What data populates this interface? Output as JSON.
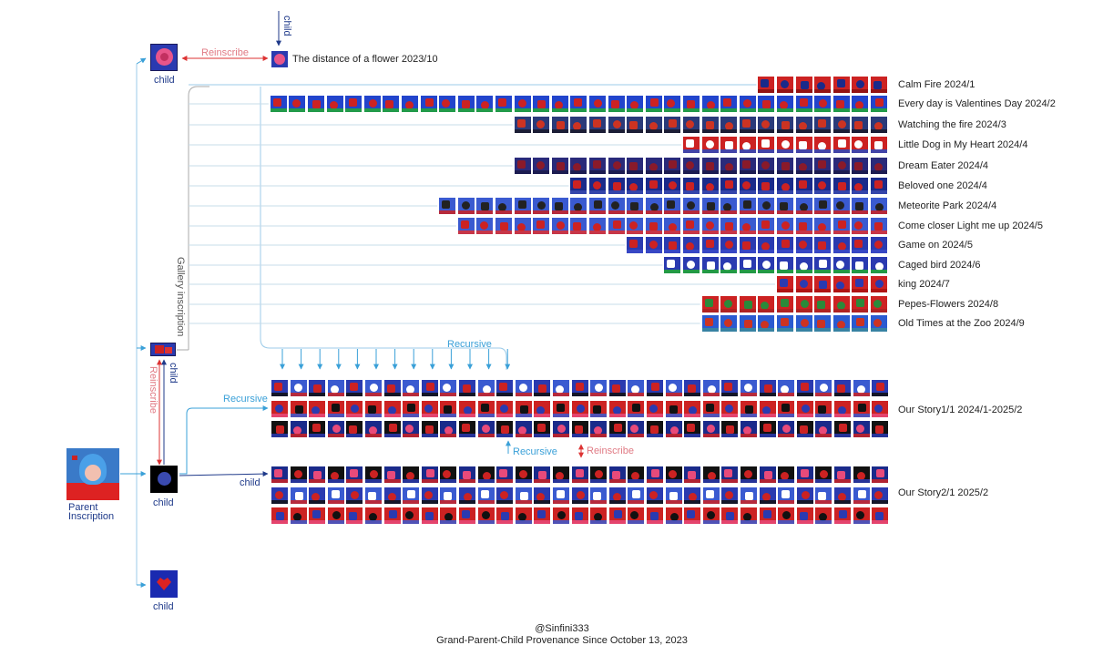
{
  "parent": {
    "label_line1": "Parent",
    "label_line2": "Inscription"
  },
  "nodes": {
    "top_child_label": "child",
    "gallery_child_label": "child",
    "center_child_label": "child",
    "bottom_child_label": "child"
  },
  "top": {
    "reinscribe": "Reinscribe",
    "child_vertical": "child",
    "flower_title": "The distance of a flower 2023/10"
  },
  "gallery_label": "Gallery inscription",
  "rows": [
    {
      "title": "Calm Fire 2024/1",
      "count": 7,
      "colors": [
        "#cc2222",
        "#1a2a8a",
        "#8a1010"
      ]
    },
    {
      "title": "Every day is Valentines Day 2024/2",
      "count": 33,
      "colors": [
        "#2244cc",
        "#cc2222",
        "#22aa33"
      ]
    },
    {
      "title": "Watching the fire 2024/3",
      "count": 20,
      "colors": [
        "#2a3a7a",
        "#cc3322",
        "#1a1a2a"
      ]
    },
    {
      "title": "Little Dog in My Heart 2024/4",
      "count": 11,
      "colors": [
        "#cc2222",
        "#ffffff",
        "#2a4ac0"
      ]
    },
    {
      "title": "Dream Eater 2024/4",
      "count": 20,
      "colors": [
        "#2a2a7a",
        "#8a1a2a",
        "#1a1a4a"
      ]
    },
    {
      "title": "Beloved one 2024/4",
      "count": 17,
      "colors": [
        "#1a2a8a",
        "#cc2222",
        "#3a4ab0"
      ]
    },
    {
      "title": "Meteorite Park 2024/4",
      "count": 24,
      "colors": [
        "#3a5ad0",
        "#222222",
        "#cc2222"
      ]
    },
    {
      "title": "Come closer Light me up 2024/5",
      "count": 23,
      "colors": [
        "#3a5ad0",
        "#cc2222",
        "#e03030"
      ]
    },
    {
      "title": "Game on 2024/5",
      "count": 14,
      "colors": [
        "#2a3ab0",
        "#cc2222",
        "#3a4ac8"
      ]
    },
    {
      "title": "Caged bird 2024/6",
      "count": 12,
      "colors": [
        "#2a3ab0",
        "#ffffff",
        "#22aa33"
      ]
    },
    {
      "title": "king 2024/7",
      "count": 6,
      "colors": [
        "#cc2222",
        "#2a3ab0",
        "#aa1111"
      ]
    },
    {
      "title": "Pepes-Flowers 2024/8",
      "count": 10,
      "colors": [
        "#cc2222",
        "#2a8a3a",
        "#aa2222"
      ]
    },
    {
      "title": "Old Times at the Zoo 2024/9",
      "count": 10,
      "colors": [
        "#2a5ad0",
        "#cc3322",
        "#3a8a9a"
      ]
    }
  ],
  "story1": {
    "title": "Our Story1/1 2024/1-2025/2",
    "rows": 3,
    "cols": 33
  },
  "story2": {
    "title": "Our Story2/1  2025/2",
    "rows": 3,
    "cols": 33
  },
  "arrows": {
    "recursive_top": "Recursive",
    "recursive_left": "Recursive",
    "recursive_mid": "Recursive",
    "reinscribe_mid": "Reinscribe",
    "reinscribe_left": "Reinscribe",
    "child_left": "child",
    "child_mid": "child"
  },
  "footer": {
    "handle": "@Sinfini333",
    "caption": "Grand-Parent-Child Provenance Since October 13, 2023"
  },
  "palette": {
    "red": "#cc2222",
    "blue": "#2a3ab0",
    "wire": "#9ccbe8",
    "navy": "#1f3a8a",
    "pink": "#e07a84",
    "cyan": "#3aa0d8"
  }
}
